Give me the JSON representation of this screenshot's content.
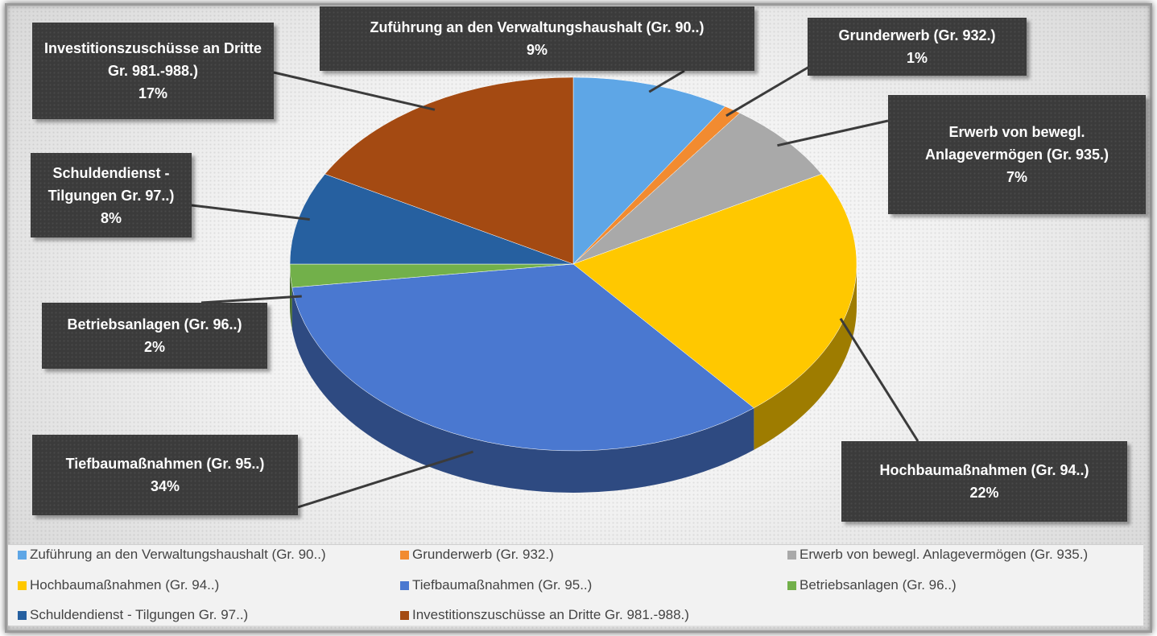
{
  "chart_data": {
    "type": "pie",
    "categories": [
      "Zuführung an den Verwaltungshaushalt (Gr. 90..)",
      "Grunderwerb (Gr. 932.)",
      "Erwerb von bewegl. Anlagevermögen (Gr. 935.)",
      "Hochbaumaßnahmen (Gr. 94..)",
      "Tiefbaumaßnahmen (Gr. 95..)",
      "Betriebsanlagen (Gr. 96..)",
      "Schuldendienst - Tilgungen Gr. 97..)",
      "Investitionszuschüsse an Dritte Gr. 981.-988.)"
    ],
    "values": [
      9,
      1,
      7,
      22,
      34,
      2,
      8,
      17
    ],
    "value_labels": [
      "9%",
      "1%",
      "7%",
      "22%",
      "34%",
      "2%",
      "8%",
      "17%"
    ],
    "colors": [
      "#5ea6e6",
      "#f28b30",
      "#a9a9a9",
      "#ffc800",
      "#4a78d0",
      "#72b04a",
      "#2660a0",
      "#a44a12"
    ],
    "legend": "bottom"
  }
}
